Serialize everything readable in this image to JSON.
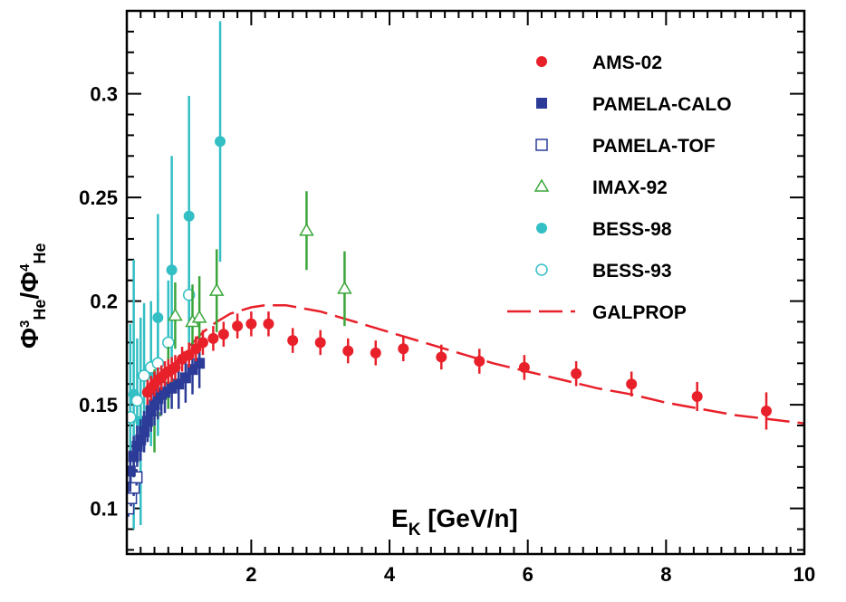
{
  "chart_data": {
    "type": "scatter",
    "xlabel": {
      "main": "E",
      "sub": "K",
      "rest": " [GeV/n]"
    },
    "ylabel": {
      "phi": "Φ",
      "num_sup": "3",
      "num_sub": "He",
      "slash": "/",
      "den_sup": "4",
      "den_sub": "He"
    },
    "xlim": [
      0.2,
      10
    ],
    "ylim": [
      0.078,
      0.34
    ],
    "x_ticks": [
      2,
      4,
      6,
      8,
      10
    ],
    "x_tick_labels": [
      "2",
      "4",
      "6",
      "8",
      "10"
    ],
    "y_ticks": [
      0.1,
      0.15,
      0.2,
      0.25,
      0.3
    ],
    "y_tick_labels": [
      "0.1",
      "0.15",
      "0.2",
      "0.25",
      "0.3"
    ],
    "legend_position": "top-right",
    "colors": {
      "ams": "#e8202a",
      "pamela": "#2b3b97",
      "imax": "#3aa63a",
      "bess": "#33bfc4",
      "galprop": "#e8202a"
    },
    "series": [
      {
        "name": "AMS-02",
        "marker": "filled-circle",
        "color": "#e8202a",
        "points": [
          [
            0.5,
            0.156,
            0.006
          ],
          [
            0.55,
            0.158,
            0.006
          ],
          [
            0.6,
            0.16,
            0.006
          ],
          [
            0.65,
            0.162,
            0.006
          ],
          [
            0.7,
            0.163,
            0.006
          ],
          [
            0.75,
            0.165,
            0.006
          ],
          [
            0.8,
            0.166,
            0.006
          ],
          [
            0.85,
            0.167,
            0.006
          ],
          [
            0.9,
            0.168,
            0.006
          ],
          [
            1.0,
            0.172,
            0.006
          ],
          [
            1.1,
            0.174,
            0.006
          ],
          [
            1.2,
            0.177,
            0.006
          ],
          [
            1.3,
            0.18,
            0.006
          ],
          [
            1.45,
            0.182,
            0.006
          ],
          [
            1.6,
            0.184,
            0.006
          ],
          [
            1.8,
            0.188,
            0.006
          ],
          [
            2.0,
            0.189,
            0.006
          ],
          [
            2.25,
            0.189,
            0.006
          ],
          [
            2.6,
            0.181,
            0.006
          ],
          [
            3.0,
            0.18,
            0.006
          ],
          [
            3.4,
            0.176,
            0.006
          ],
          [
            3.8,
            0.175,
            0.006
          ],
          [
            4.2,
            0.177,
            0.006
          ],
          [
            4.75,
            0.173,
            0.006
          ],
          [
            5.3,
            0.171,
            0.006
          ],
          [
            5.95,
            0.168,
            0.006
          ],
          [
            6.7,
            0.165,
            0.006
          ],
          [
            7.5,
            0.16,
            0.006
          ],
          [
            8.45,
            0.154,
            0.007
          ],
          [
            9.45,
            0.147,
            0.009
          ]
        ]
      },
      {
        "name": "PAMELA-CALO",
        "marker": "filled-square",
        "color": "#2b3b97",
        "points": [
          [
            0.25,
            0.118,
            0.01
          ],
          [
            0.3,
            0.125,
            0.01
          ],
          [
            0.35,
            0.13,
            0.01
          ],
          [
            0.4,
            0.133,
            0.01
          ],
          [
            0.45,
            0.137,
            0.01
          ],
          [
            0.5,
            0.142,
            0.01
          ],
          [
            0.55,
            0.147,
            0.01
          ],
          [
            0.6,
            0.15,
            0.01
          ],
          [
            0.65,
            0.153,
            0.01
          ],
          [
            0.7,
            0.155,
            0.01
          ],
          [
            0.75,
            0.156,
            0.01
          ],
          [
            0.85,
            0.158,
            0.01
          ],
          [
            0.95,
            0.16,
            0.012
          ],
          [
            1.05,
            0.163,
            0.012
          ],
          [
            1.15,
            0.167,
            0.012
          ],
          [
            1.25,
            0.17,
            0.012
          ]
        ]
      },
      {
        "name": "PAMELA-TOF",
        "marker": "open-square",
        "color": "#2b3b97",
        "points": [
          [
            0.22,
            0.1,
            0.004
          ],
          [
            0.26,
            0.105,
            0.004
          ],
          [
            0.3,
            0.11,
            0.004
          ],
          [
            0.34,
            0.115,
            0.004
          ]
        ]
      },
      {
        "name": "IMAX-92",
        "marker": "open-triangle",
        "color": "#3aa63a",
        "points": [
          [
            0.6,
            0.147,
            0.02
          ],
          [
            0.8,
            0.163,
            0.015
          ],
          [
            0.9,
            0.193,
            0.016
          ],
          [
            1.15,
            0.19,
            0.018
          ],
          [
            1.25,
            0.192,
            0.02
          ],
          [
            1.5,
            0.205,
            0.02
          ],
          [
            2.8,
            0.234,
            0.019
          ],
          [
            3.35,
            0.206,
            0.018
          ]
        ]
      },
      {
        "name": "BESS-98",
        "marker": "filled-circle",
        "color": "#33bfc4",
        "points": [
          [
            0.3,
            0.155,
            0.065
          ],
          [
            0.4,
            0.142,
            0.05
          ],
          [
            0.55,
            0.165,
            0.035
          ],
          [
            0.65,
            0.192,
            0.05
          ],
          [
            0.85,
            0.215,
            0.055
          ],
          [
            1.1,
            0.241,
            0.058
          ],
          [
            1.55,
            0.277,
            0.058
          ]
        ]
      },
      {
        "name": "BESS-93",
        "marker": "open-circle",
        "color": "#33bfc4",
        "points": [
          [
            0.25,
            0.144,
            0.045
          ],
          [
            0.35,
            0.152,
            0.03
          ],
          [
            0.45,
            0.164,
            0.035
          ],
          [
            0.55,
            0.168,
            0.03
          ],
          [
            0.65,
            0.17,
            0.035
          ],
          [
            0.8,
            0.18,
            0.03
          ],
          [
            1.1,
            0.203,
            0.04
          ]
        ]
      },
      {
        "name": "GALPROP",
        "marker": "dashed-line",
        "color": "#e8202a",
        "curve": [
          [
            0.5,
            0.156
          ],
          [
            0.7,
            0.163
          ],
          [
            0.9,
            0.17
          ],
          [
            1.1,
            0.178
          ],
          [
            1.3,
            0.185
          ],
          [
            1.5,
            0.19
          ],
          [
            1.7,
            0.194
          ],
          [
            2.0,
            0.197
          ],
          [
            2.2,
            0.198
          ],
          [
            2.5,
            0.198
          ],
          [
            3.0,
            0.195
          ],
          [
            3.5,
            0.19
          ],
          [
            4.0,
            0.185
          ],
          [
            4.5,
            0.18
          ],
          [
            5.0,
            0.175
          ],
          [
            5.5,
            0.17
          ],
          [
            6.0,
            0.166
          ],
          [
            6.5,
            0.162
          ],
          [
            7.0,
            0.158
          ],
          [
            7.5,
            0.155
          ],
          [
            8.0,
            0.151
          ],
          [
            8.5,
            0.148
          ],
          [
            9.0,
            0.145
          ],
          [
            9.5,
            0.143
          ],
          [
            10.0,
            0.141
          ]
        ]
      }
    ]
  }
}
